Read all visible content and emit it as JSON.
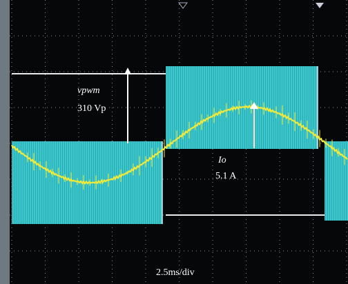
{
  "labels": {
    "voltage_name": "vpwm",
    "voltage_value": "310 Vp",
    "current_name": "Io",
    "current_value": "5.1 A",
    "timebase": "2.5ms/div"
  }
}
